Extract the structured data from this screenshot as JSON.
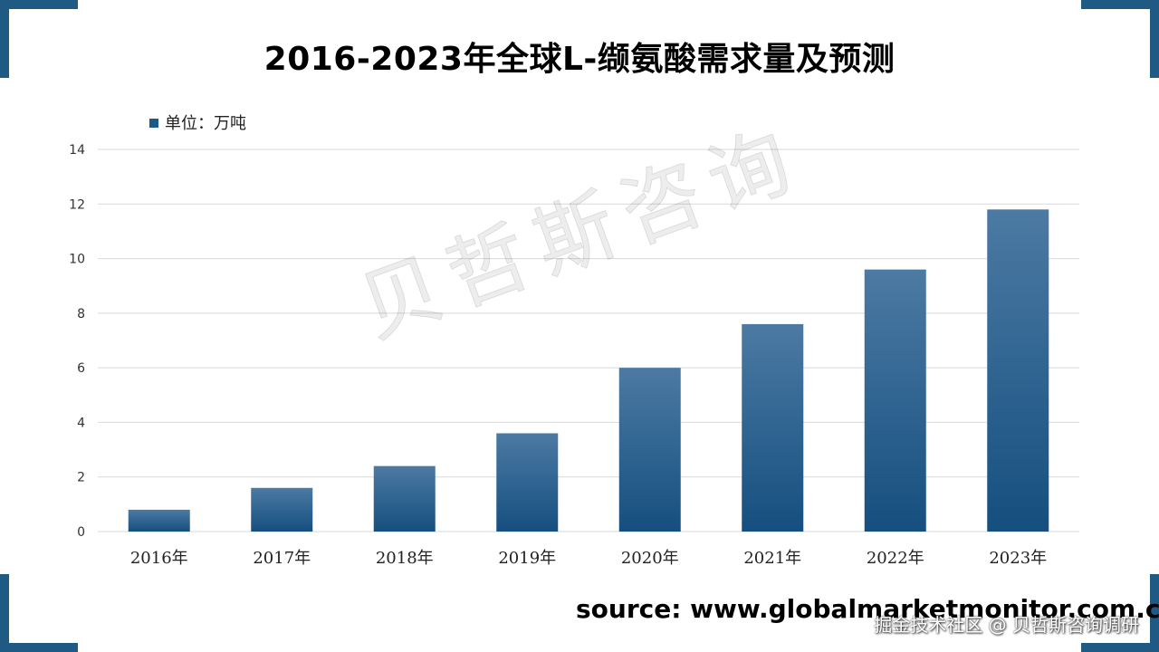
{
  "title": "2016-2023年全球L-缬氨酸需求量及预测",
  "source": "source: www.globalmarketmonitor.com.cn",
  "watermark_center": "贝哲斯咨询",
  "watermark_bottom": "掘金技术社区 @ 贝哲斯咨询调研",
  "colors": {
    "bar_top": "#4c7aa3",
    "bar_bottom": "#154f7f",
    "accent": "#1f5a84",
    "grid": "#d9d9d9"
  },
  "chart_data": {
    "type": "bar",
    "title": "2016-2023年全球L-缬氨酸需求量及预测",
    "categories": [
      "2016年",
      "2017年",
      "2018年",
      "2019年",
      "2020年",
      "2021年",
      "2022年",
      "2023年"
    ],
    "series": [
      {
        "name": "单位：万吨",
        "values": [
          0.8,
          1.6,
          2.4,
          3.6,
          6.0,
          7.6,
          9.6,
          11.8
        ]
      }
    ],
    "yticks": [
      0,
      2,
      4,
      6,
      8,
      10,
      12,
      14
    ],
    "ylim": [
      0,
      14
    ],
    "grid": true,
    "legend": "top-left"
  }
}
